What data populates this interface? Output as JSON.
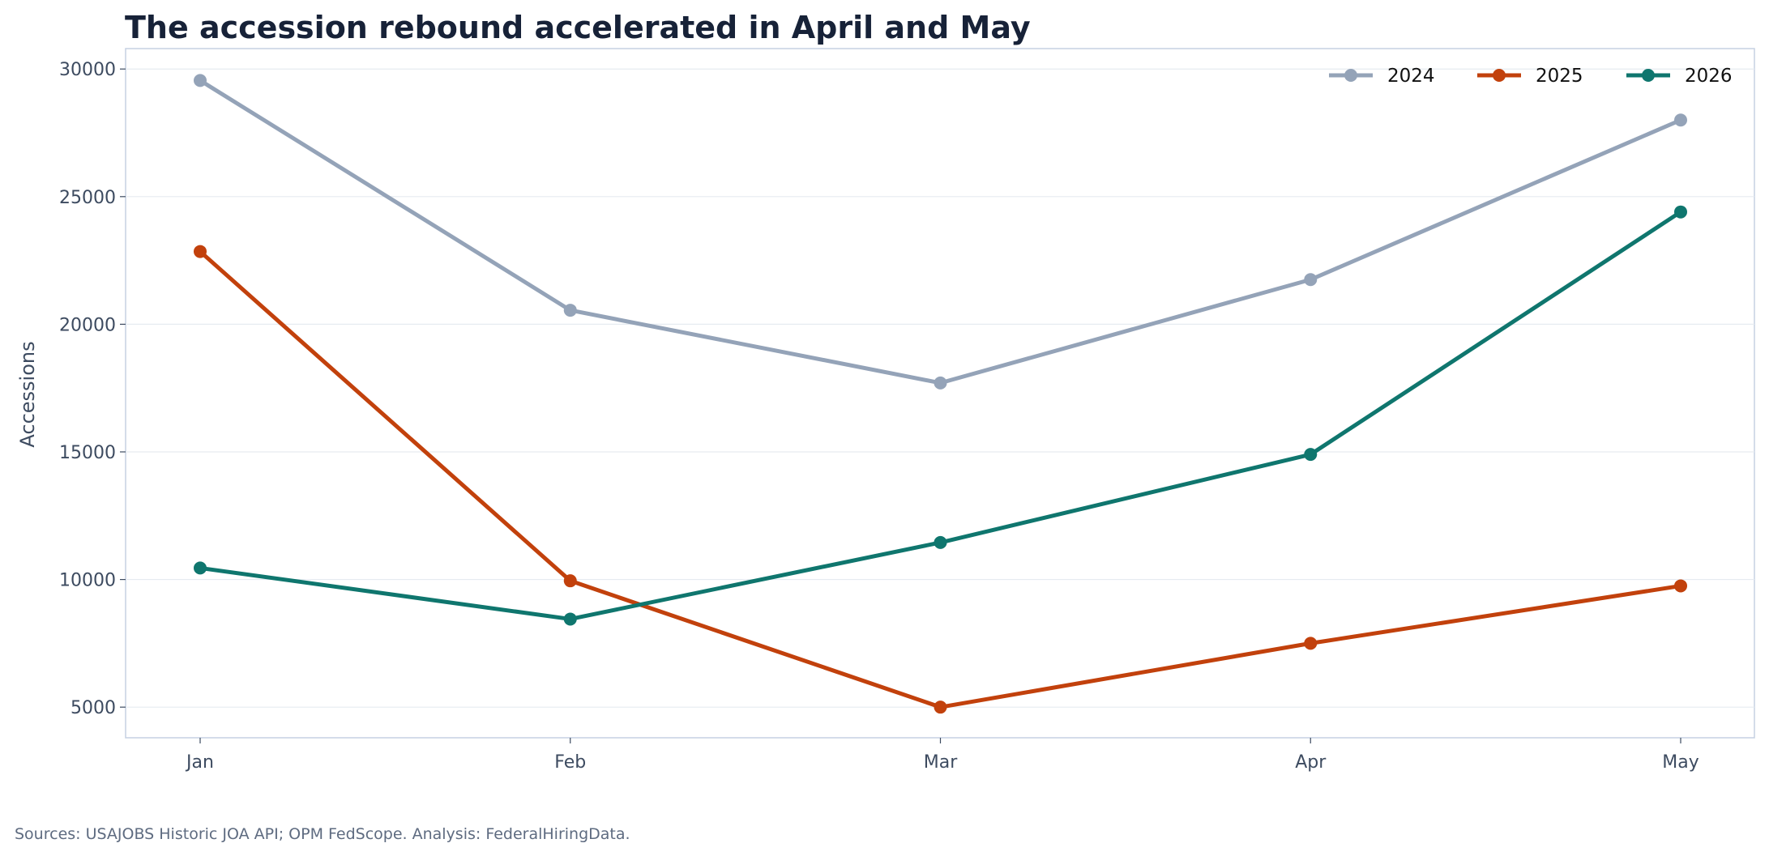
{
  "chart_data": {
    "type": "line",
    "title": "The accession rebound accelerated in April and May",
    "xlabel": "",
    "ylabel": "Accessions",
    "categories": [
      "Jan",
      "Feb",
      "Mar",
      "Apr",
      "May"
    ],
    "y_ticks": [
      5000,
      10000,
      15000,
      20000,
      25000,
      30000
    ],
    "ylim": [
      3800,
      30800
    ],
    "grid": "horizontal",
    "legend_position": "top-right",
    "series": [
      {
        "name": "2024",
        "color": "#94a3b8",
        "values": [
          29550,
          20550,
          17700,
          21750,
          28000
        ]
      },
      {
        "name": "2025",
        "color": "#c2410c",
        "values": [
          22850,
          9950,
          5000,
          7500,
          9750
        ]
      },
      {
        "name": "2026",
        "color": "#0f766e",
        "values": [
          10450,
          8450,
          11450,
          14900,
          24400
        ]
      }
    ],
    "source": "Sources: USAJOBS Historic JOA API; OPM FedScope. Analysis: FederalHiringData."
  }
}
